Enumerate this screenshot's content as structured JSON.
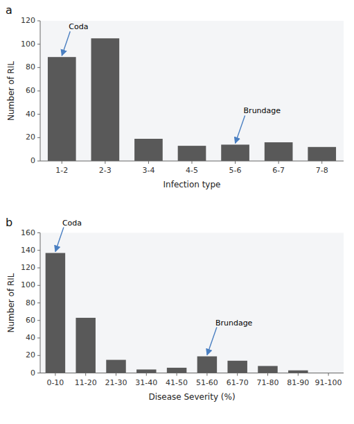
{
  "chart_data": [
    {
      "type": "bar",
      "title": "a",
      "categories": [
        "1-2",
        "2-3",
        "3-4",
        "4-5",
        "5-6",
        "6-7",
        "7-8"
      ],
      "values": [
        89,
        105,
        19,
        13,
        14,
        16,
        12
      ],
      "color": "#595959",
      "x_label": "Infection type",
      "y_label": "Number of RIL",
      "ylim": [
        0,
        120
      ],
      "yticks": [
        0,
        20,
        40,
        60,
        80,
        100,
        120
      ],
      "annotations": [
        {
          "text": "Coda",
          "category": "1-2",
          "value": 89
        },
        {
          "text": "Brundage",
          "category": "5-6",
          "value": 14
        }
      ]
    },
    {
      "type": "bar",
      "title": "b",
      "categories": [
        "0-10",
        "11-20",
        "21-30",
        "31-40",
        "41-50",
        "51-60",
        "61-70",
        "71-80",
        "81-90",
        "91-100"
      ],
      "values": [
        137,
        63,
        15,
        4,
        6,
        19,
        14,
        8,
        3,
        0
      ],
      "color": "#595959",
      "x_label": "Disease Severity (%)",
      "y_label": "Number of RIL",
      "ylim": [
        0,
        160
      ],
      "yticks": [
        0,
        20,
        40,
        60,
        80,
        100,
        120,
        140,
        160
      ],
      "annotations": [
        {
          "text": "Coda",
          "category": "0-10",
          "value": 137
        },
        {
          "text": "Brundage",
          "category": "51-60",
          "value": 19
        }
      ]
    }
  ]
}
